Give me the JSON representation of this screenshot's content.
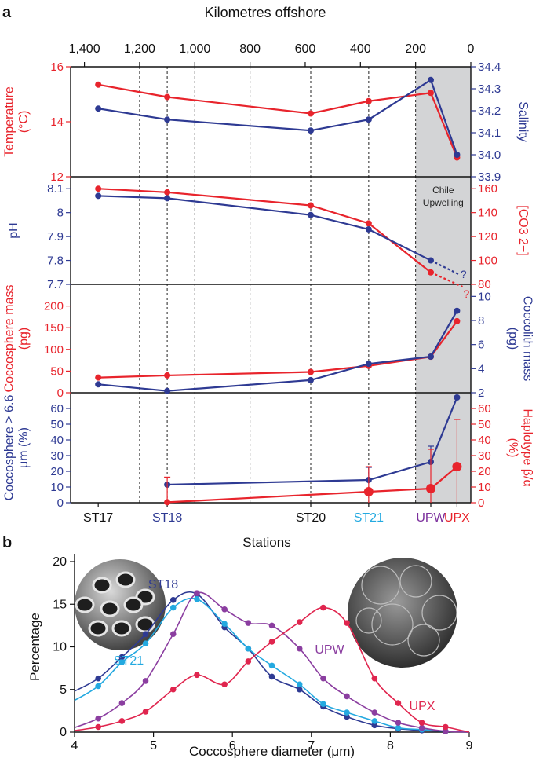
{
  "panel_a_label": "a",
  "panel_b_label": "b",
  "top_axis_title": "Kilometres offshore",
  "bottom_axis_title": "Stations",
  "upwelling_label": [
    "Chile",
    "Upwelling"
  ],
  "colors": {
    "red": "#e8242c",
    "blue": "#2e3a93",
    "cyan": "#23a9e0",
    "purple": "#8b3ea0",
    "crimson": "#e0254e",
    "shade": "#d3d4d6"
  },
  "chart_data": [
    {
      "type": "line",
      "panel": "a",
      "x_axis": {
        "label": "Kilometres offshore",
        "reversed": true,
        "lim": [
          0,
          1450
        ],
        "ticks": [
          1400,
          1200,
          1000,
          800,
          600,
          400,
          200,
          0
        ],
        "tick_labels": [
          "1,400",
          "1,200",
          "1,000",
          "800",
          "600",
          "400",
          "200",
          "0"
        ]
      },
      "stations": [
        {
          "name": "ST17",
          "km": 1350,
          "color": "#111111"
        },
        {
          "name": "ST18",
          "km": 1100,
          "color": "#2e3a93"
        },
        {
          "name": "ST20",
          "km": 580,
          "color": "#111111"
        },
        {
          "name": "ST21",
          "km": 370,
          "color": "#23a9e0"
        },
        {
          "name": "UPW",
          "km": 145,
          "color": "#7b2f9c"
        },
        {
          "name": "UPX",
          "km": 50,
          "color": "#e8242c"
        }
      ],
      "vertical_dashed_lines_km": [
        1200,
        1100,
        1000,
        800,
        580,
        370,
        200
      ],
      "shaded_region_km": [
        0,
        200
      ],
      "panels": [
        {
          "left": {
            "label": "Temperature (°C)",
            "lim": [
              12,
              16
            ],
            "ticks": [
              12,
              14,
              16
            ],
            "color": "#e8242c"
          },
          "right": {
            "label": "Salinity",
            "lim": [
              33.9,
              34.4
            ],
            "ticks": [
              33.9,
              34.0,
              34.1,
              34.2,
              34.3,
              34.4
            ],
            "tick_labels": [
              "33.9",
              "34.0",
              "34.1",
              "34.2",
              "34.3",
              "34.4"
            ],
            "color": "#2e3a93"
          },
          "series": [
            {
              "axis": "left",
              "color": "#e8242c",
              "x": [
                1350,
                1100,
                580,
                370,
                145,
                50
              ],
              "y": [
                15.35,
                14.9,
                14.3,
                14.75,
                15.05,
                12.7
              ]
            },
            {
              "axis": "right",
              "color": "#2e3a93",
              "x": [
                1350,
                1100,
                580,
                370,
                145,
                50
              ],
              "y": [
                34.21,
                34.16,
                34.11,
                34.16,
                34.34,
                34.0
              ]
            }
          ]
        },
        {
          "left": {
            "label": "pH",
            "lim": [
              7.7,
              8.15
            ],
            "ticks": [
              7.7,
              7.8,
              7.9,
              8.0,
              8.1
            ],
            "tick_labels": [
              "7.7",
              "7.8",
              "7.9",
              "8",
              "8.1"
            ],
            "color": "#2e3a93"
          },
          "right": {
            "label": "[CO3 2−]",
            "lim": [
              80,
              170
            ],
            "ticks": [
              80,
              100,
              120,
              140,
              160
            ],
            "color": "#e8242c"
          },
          "series": [
            {
              "axis": "right",
              "color": "#e8242c",
              "x": [
                1350,
                1100,
                580,
                370,
                145
              ],
              "y": [
                160,
                157,
                146,
                131,
                90
              ],
              "extrapolated": {
                "x": [
                  145,
                  30
                ],
                "y": [
                  90,
                  78
                ]
              },
              "unknown_marker": "?"
            },
            {
              "axis": "left",
              "color": "#2e3a93",
              "x": [
                1350,
                1100,
                580,
                370,
                145
              ],
              "y": [
                8.07,
                8.06,
                7.99,
                7.93,
                7.8
              ],
              "extrapolated": {
                "x": [
                  145,
                  40
                ],
                "y": [
                  7.8,
                  7.74
                ]
              },
              "unknown_marker": "?"
            }
          ]
        },
        {
          "left": {
            "label": "Coccosphere mass (pg)",
            "lim": [
              0,
              250
            ],
            "ticks": [
              0,
              50,
              100,
              150,
              200
            ],
            "color": "#e8242c"
          },
          "right": {
            "label": "Coccolith mass (pg)",
            "lim": [
              2,
              11
            ],
            "ticks": [
              2,
              4,
              6,
              8,
              10
            ],
            "color": "#2e3a93"
          },
          "series": [
            {
              "axis": "left",
              "color": "#e8242c",
              "x": [
                1350,
                1100,
                580,
                370,
                145,
                50
              ],
              "y": [
                35,
                40,
                48,
                62,
                83,
                165
              ]
            },
            {
              "axis": "right",
              "color": "#2e3a93",
              "x": [
                1350,
                1100,
                580,
                370,
                145,
                50
              ],
              "y": [
                2.7,
                2.15,
                3.05,
                4.4,
                5.0,
                8.8
              ]
            }
          ]
        },
        {
          "left": {
            "label": "Coccosphere > 6.6 μm (%)",
            "lim": [
              0,
              70
            ],
            "ticks": [
              0,
              10,
              20,
              30,
              40,
              50,
              60
            ],
            "color": "#2e3a93"
          },
          "right": {
            "label": "Haplotype β/α (%)",
            "lim": [
              0,
              70
            ],
            "ticks": [
              0,
              10,
              20,
              30,
              40,
              50,
              60
            ],
            "color": "#e8242c"
          },
          "series": [
            {
              "axis": "left",
              "color": "#2e3a93",
              "x": [
                1100,
                370,
                145,
                50
              ],
              "y": [
                11.5,
                14.5,
                26,
                67
              ],
              "err_up": [
                0,
                8,
                10,
                0
              ],
              "err_down": [
                0,
                0,
                0,
                0
              ]
            },
            {
              "axis": "right",
              "color": "#e8242c",
              "x": [
                1100,
                370,
                145,
                50
              ],
              "y": [
                0.3,
                7,
                9,
                23
              ],
              "err_up": [
                16,
                16,
                25,
                30
              ],
              "err_down": [
                0,
                7,
                9,
                23
              ],
              "large_markers": [
                false,
                true,
                true,
                true
              ]
            }
          ]
        }
      ]
    },
    {
      "type": "line",
      "panel": "b",
      "xlabel": "Coccosphere diameter (μm)",
      "ylabel": "Percentage",
      "xlim": [
        4,
        9
      ],
      "ylim": [
        0,
        20
      ],
      "xticks": [
        4,
        5,
        6,
        7,
        8,
        9
      ],
      "yticks": [
        0,
        5,
        10,
        15,
        20
      ],
      "series": [
        {
          "name": "ST18",
          "color": "#2e3a93",
          "x": [
            4.3,
            4.6,
            4.9,
            5.25,
            5.55,
            5.9,
            6.2,
            6.5,
            6.85,
            7.15,
            7.45,
            7.8,
            8.1,
            8.4,
            8.7
          ],
          "y": [
            6.3,
            8.8,
            11.5,
            15.5,
            16.2,
            12.3,
            9.8,
            6.5,
            5.0,
            3.0,
            1.8,
            0.8,
            0.4,
            0.2,
            0.1
          ]
        },
        {
          "name": "ST21",
          "color": "#23a9e0",
          "x": [
            4.3,
            4.6,
            4.9,
            5.25,
            5.55,
            5.9,
            6.2,
            6.5,
            6.85,
            7.15,
            7.45,
            7.8,
            8.1,
            8.4,
            8.7
          ],
          "y": [
            5.4,
            8.2,
            10.4,
            14.6,
            15.6,
            12.7,
            9.8,
            7.8,
            5.6,
            3.3,
            2.3,
            1.3,
            0.5,
            0.3,
            0.1
          ]
        },
        {
          "name": "UPW",
          "color": "#8b3ea0",
          "x": [
            4.3,
            4.6,
            4.9,
            5.25,
            5.55,
            5.9,
            6.2,
            6.5,
            6.85,
            7.15,
            7.45,
            7.8,
            8.1,
            8.4,
            8.7
          ],
          "y": [
            1.6,
            3.4,
            6.0,
            11.5,
            16.3,
            14.4,
            12.8,
            12.5,
            9.8,
            6.3,
            4.2,
            2.3,
            1.1,
            0.5,
            0.1
          ]
        },
        {
          "name": "UPX",
          "color": "#e0254e",
          "x": [
            4.3,
            4.6,
            4.9,
            5.25,
            5.55,
            5.9,
            6.2,
            6.5,
            6.85,
            7.15,
            7.45,
            7.8,
            8.1,
            8.4,
            8.7
          ],
          "y": [
            0.6,
            1.3,
            2.4,
            5.0,
            6.7,
            5.6,
            8.3,
            10.6,
            12.9,
            14.6,
            12.8,
            6.3,
            3.4,
            1.1,
            0.6
          ]
        }
      ],
      "annotations": [
        "ST18",
        "ST21",
        "UPW",
        "UPX"
      ]
    }
  ]
}
